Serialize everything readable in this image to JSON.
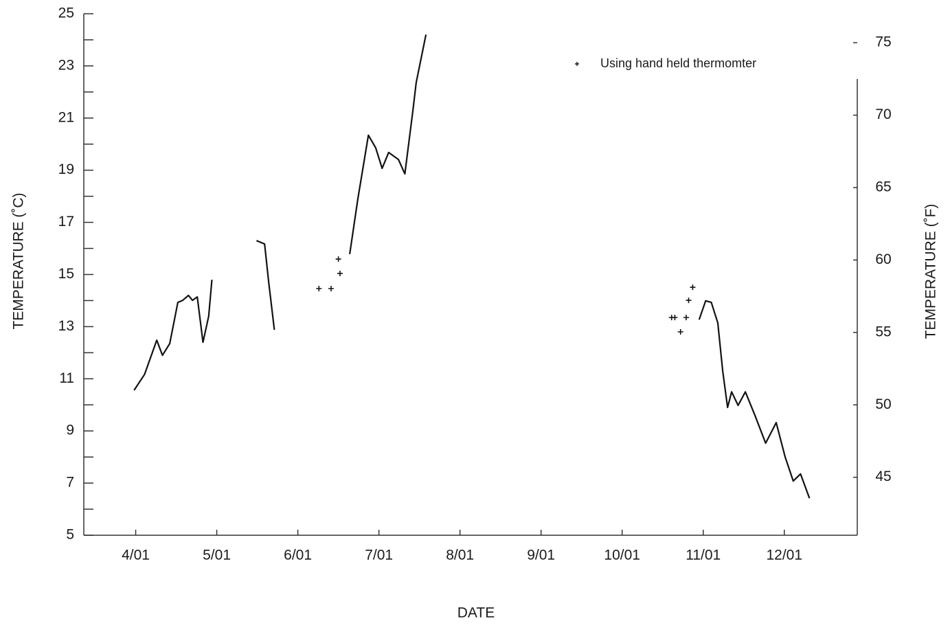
{
  "chart_data": {
    "type": "line",
    "xlabel": "DATE",
    "ylabel": "TEMPERATURE (˚C)",
    "y2label": "TEMPERATURE (˚F)",
    "xlim": [
      3.36,
      12.9
    ],
    "xticks": [
      {
        "value": 4,
        "label": "4/01"
      },
      {
        "value": 5,
        "label": "5/01"
      },
      {
        "value": 6,
        "label": "6/01"
      },
      {
        "value": 7,
        "label": "7/01"
      },
      {
        "value": 8,
        "label": "8/01"
      },
      {
        "value": 9,
        "label": "9/01"
      },
      {
        "value": 10,
        "label": "10/01"
      },
      {
        "value": 11,
        "label": "11/01"
      },
      {
        "value": 12,
        "label": "12/01"
      }
    ],
    "ylim": [
      5,
      25
    ],
    "yticks": [
      5,
      7,
      9,
      11,
      13,
      15,
      17,
      19,
      21,
      23,
      25
    ],
    "y2lim": [
      41,
      77
    ],
    "y2ticks": [
      45,
      50,
      55,
      60,
      65,
      70,
      75
    ],
    "legend": "upper right",
    "series": [
      {
        "style": "line",
        "color": "#111111",
        "x": [
          3.98,
          4.11,
          4.26,
          4.33,
          4.42,
          4.52,
          4.58,
          4.65,
          4.7,
          4.76,
          4.83,
          4.9,
          4.94,
          null,
          5.49,
          5.53,
          5.59,
          5.64,
          5.71,
          null,
          6.64,
          6.74,
          6.87,
          6.96,
          7.04,
          7.12,
          7.24,
          7.32,
          7.42,
          7.46,
          7.58,
          null,
          10.95,
          11.03,
          11.1,
          11.18,
          11.24,
          11.3,
          11.35,
          11.43,
          11.52,
          11.64,
          11.77,
          11.9,
          12.01,
          12.11,
          12.2,
          12.31
        ],
        "values": [
          10.56,
          11.17,
          12.48,
          11.9,
          12.35,
          13.93,
          14.01,
          14.2,
          14.01,
          14.14,
          12.4,
          13.4,
          14.8,
          null,
          16.3,
          16.25,
          16.17,
          14.72,
          12.88,
          null,
          15.78,
          17.89,
          20.34,
          19.86,
          19.07,
          19.68,
          19.41,
          18.86,
          21.31,
          22.36,
          24.2,
          null,
          13.27,
          13.99,
          13.93,
          13.14,
          11.3,
          9.9,
          10.5,
          9.98,
          10.5,
          9.58,
          8.53,
          9.32,
          8.0,
          7.08,
          7.35,
          6.42
        ]
      },
      {
        "style": "markers",
        "marker": "+",
        "color": "#111111",
        "name": "Using hand held thermomter",
        "x": [
          6.26,
          6.41,
          6.5,
          6.52,
          10.61,
          10.65,
          10.72,
          10.79,
          10.82,
          10.87
        ],
        "values": [
          14.46,
          14.46,
          15.59,
          15.04,
          13.35,
          13.35,
          12.8,
          13.35,
          14.01,
          14.51
        ]
      }
    ]
  }
}
